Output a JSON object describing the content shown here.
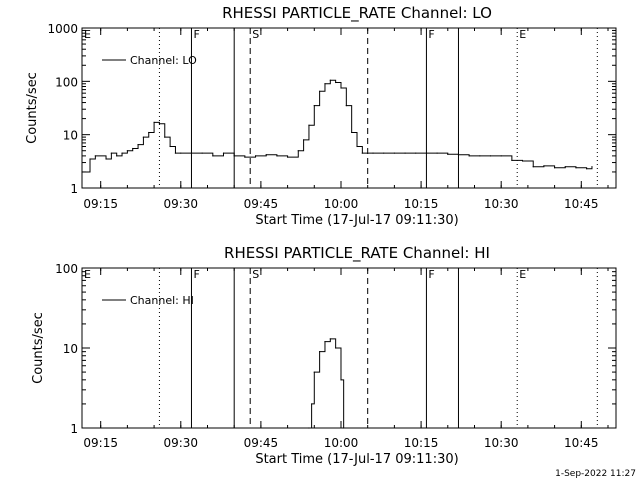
{
  "timestamp": "1-Sep-2022 11:27",
  "chart_data": [
    {
      "type": "line",
      "title": "RHESSI PARTICLE_RATE Channel: LO",
      "xlabel": "Start Time (17-Jul-17 09:11:30)",
      "ylabel": "Counts/sec",
      "yscale": "log",
      "ylim": [
        1,
        1000
      ],
      "xlim": [
        "09:11:30",
        "10:51:30"
      ],
      "x_ticks": [
        "09:15",
        "09:30",
        "09:45",
        "10:00",
        "10:15",
        "10:30",
        "10:45"
      ],
      "y_ticks": [
        "1",
        "10",
        "100",
        "1000"
      ],
      "legend": {
        "label": "Channel: LO",
        "position": "top-left"
      },
      "markers": [
        {
          "time": "09:11:30",
          "label": "E",
          "style": "dotted"
        },
        {
          "time": "09:26",
          "label": "",
          "style": "dotted"
        },
        {
          "time": "09:32",
          "label": "F",
          "style": "solid"
        },
        {
          "time": "09:40",
          "label": "",
          "style": "solid"
        },
        {
          "time": "09:43",
          "label": "S",
          "style": "dashed"
        },
        {
          "time": "10:05",
          "label": "",
          "style": "dashed"
        },
        {
          "time": "10:16",
          "label": "F",
          "style": "solid"
        },
        {
          "time": "10:22",
          "label": "",
          "style": "solid"
        },
        {
          "time": "10:33",
          "label": "E",
          "style": "dotted"
        },
        {
          "time": "10:48",
          "label": "",
          "style": "dotted"
        }
      ],
      "series": [
        {
          "name": "Channel: LO",
          "x": [
            "09:11:30",
            "09:13",
            "09:14",
            "09:16",
            "09:17",
            "09:18",
            "09:19",
            "09:20",
            "09:21",
            "09:22",
            "09:23",
            "09:24",
            "09:25",
            "09:26",
            "09:27",
            "09:28",
            "09:29",
            "09:30",
            "09:32",
            "09:34",
            "09:36",
            "09:38",
            "09:40",
            "09:42",
            "09:44",
            "09:46",
            "09:48",
            "09:50",
            "09:52",
            "09:53",
            "09:54",
            "09:55",
            "09:56",
            "09:57",
            "09:58",
            "09:59",
            "10:00",
            "10:01",
            "10:02",
            "10:03",
            "10:04",
            "10:06",
            "10:08",
            "10:10",
            "10:12",
            "10:14",
            "10:16",
            "10:18",
            "10:20",
            "10:22",
            "10:24",
            "10:26",
            "10:28",
            "10:30",
            "10:32",
            "10:34",
            "10:36",
            "10:38",
            "10:40",
            "10:42",
            "10:44",
            "10:46",
            "10:47"
          ],
          "y": [
            2,
            3.5,
            4,
            3.5,
            4.5,
            4,
            4.5,
            5,
            5.5,
            6.5,
            9,
            11,
            17,
            16,
            9,
            6,
            4.5,
            4.5,
            4.5,
            4.5,
            4,
            4.5,
            4,
            3.8,
            4,
            4.2,
            4,
            3.8,
            5,
            8,
            15,
            35,
            65,
            90,
            105,
            95,
            75,
            35,
            11,
            6,
            4.5,
            4.5,
            4.5,
            4.5,
            4.5,
            4.5,
            4.5,
            4.5,
            4.3,
            4.2,
            4,
            4,
            4,
            4,
            3.3,
            3.2,
            2.5,
            2.6,
            2.4,
            2.5,
            2.4,
            2.3,
            2.5
          ]
        }
      ]
    },
    {
      "type": "line",
      "title": "RHESSI PARTICLE_RATE Channel: HI",
      "xlabel": "Start Time (17-Jul-17 09:11:30)",
      "ylabel": "Counts/sec",
      "yscale": "log",
      "ylim": [
        1,
        100
      ],
      "xlim": [
        "09:11:30",
        "10:51:30"
      ],
      "x_ticks": [
        "09:15",
        "09:30",
        "09:45",
        "10:00",
        "10:15",
        "10:30",
        "10:45"
      ],
      "y_ticks": [
        "1",
        "10",
        "100"
      ],
      "legend": {
        "label": "Channel: HI",
        "position": "top-left"
      },
      "markers": [
        {
          "time": "09:11:30",
          "label": "E",
          "style": "dotted"
        },
        {
          "time": "09:26",
          "label": "",
          "style": "dotted"
        },
        {
          "time": "09:32",
          "label": "F",
          "style": "solid"
        },
        {
          "time": "09:40",
          "label": "",
          "style": "solid"
        },
        {
          "time": "09:43",
          "label": "S",
          "style": "dashed"
        },
        {
          "time": "10:05",
          "label": "",
          "style": "dashed"
        },
        {
          "time": "10:16",
          "label": "F",
          "style": "solid"
        },
        {
          "time": "10:22",
          "label": "",
          "style": "solid"
        },
        {
          "time": "10:33",
          "label": "E",
          "style": "dotted"
        },
        {
          "time": "10:48",
          "label": "",
          "style": "dotted"
        }
      ],
      "series": [
        {
          "name": "Channel: HI",
          "x": [
            "09:54",
            "09:54:30",
            "09:55",
            "09:56",
            "09:57",
            "09:58",
            "09:59",
            "10:00",
            "10:00:30"
          ],
          "y": [
            1,
            2,
            5,
            9,
            12,
            13,
            10,
            4,
            1
          ]
        }
      ]
    }
  ]
}
